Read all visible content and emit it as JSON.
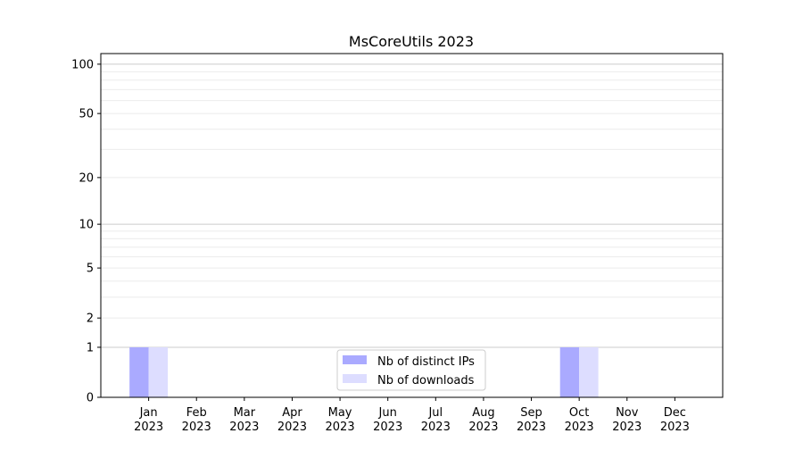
{
  "chart_data": {
    "type": "bar",
    "title": "MsCoreUtils 2023",
    "xlabel": "",
    "ylabel": "",
    "y_scale": "log(1+y)",
    "ylim": [
      0,
      116
    ],
    "grid": true,
    "legend_placement": "lower-center",
    "categories": [
      "Jan\n2023",
      "Feb\n2023",
      "Mar\n2023",
      "Apr\n2023",
      "May\n2023",
      "Jun\n2023",
      "Jul\n2023",
      "Aug\n2023",
      "Sep\n2023",
      "Oct\n2023",
      "Nov\n2023",
      "Dec\n2023"
    ],
    "y_ticks": [
      0,
      1,
      2,
      5,
      10,
      20,
      50,
      100
    ],
    "y_tick_labels": [
      "0",
      "1",
      "2",
      "5",
      "10",
      "20",
      "50",
      "100"
    ],
    "series": [
      {
        "name": "Nb of distinct IPs",
        "color": "#aaaaff",
        "values": [
          1,
          0,
          0,
          0,
          0,
          0,
          0,
          0,
          0,
          1,
          0,
          0
        ]
      },
      {
        "name": "Nb of downloads",
        "color": "#ddddff",
        "values": [
          1,
          0,
          0,
          0,
          0,
          0,
          0,
          0,
          0,
          1,
          0,
          0
        ]
      }
    ]
  }
}
